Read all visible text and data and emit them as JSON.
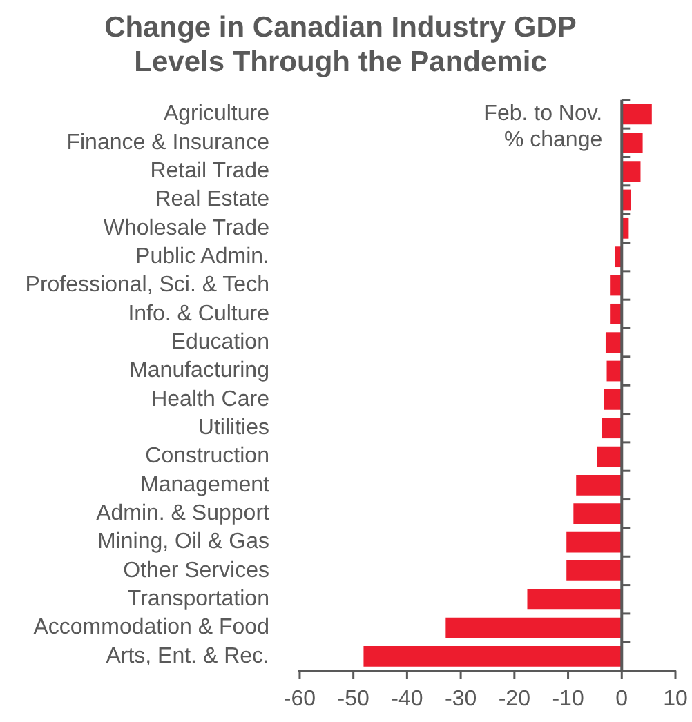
{
  "chart_data": {
    "type": "bar",
    "orientation": "horizontal",
    "title": "Change in Canadian Industry GDP\nLevels Through the Pandemic",
    "categories": [
      "Agriculture",
      "Finance & Insurance",
      "Retail Trade",
      "Real Estate",
      "Wholesale Trade",
      "Public Admin.",
      "Professional, Sci. & Tech",
      "Info. & Culture",
      "Education",
      "Manufacturing",
      "Health Care",
      "Utilities",
      "Construction",
      "Management",
      "Admin. & Support",
      "Mining, Oil & Gas",
      "Other Services",
      "Transportation",
      "Accommodation & Food",
      "Arts, Ent. & Rec."
    ],
    "values": [
      5.6,
      3.9,
      3.5,
      1.7,
      1.3,
      -1.3,
      -2.2,
      -2.2,
      -3.0,
      -2.8,
      -3.3,
      -3.7,
      -4.6,
      -8.5,
      -9.0,
      -10.3,
      -10.3,
      -17.6,
      -32.8,
      -48.1
    ],
    "color": "#ed1c2e",
    "xlim": [
      -60,
      10
    ],
    "xticks": [
      -60,
      -50,
      -40,
      -30,
      -20,
      -10,
      0,
      10
    ],
    "legend": false,
    "annotations": [
      "Feb. to Nov.\n% change"
    ]
  }
}
